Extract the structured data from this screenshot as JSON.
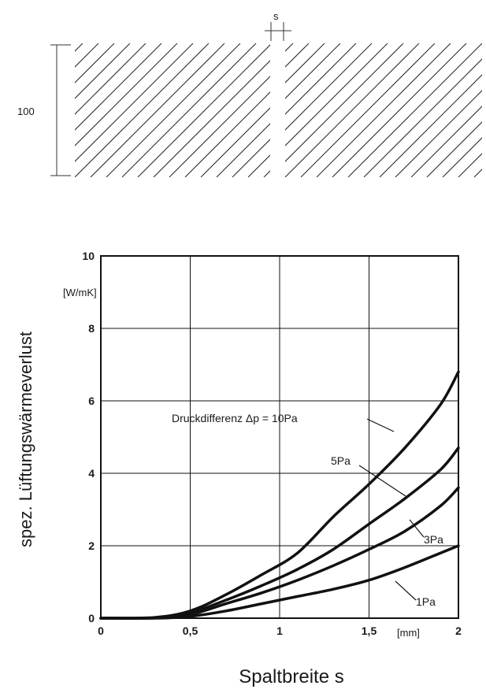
{
  "detail": {
    "dimension_label": "100",
    "gap_label": "s"
  },
  "chart_data": {
    "type": "line",
    "title": "",
    "xlabel": "Spaltbreite s",
    "ylabel": "spez. Lüftungswärmeverlust",
    "x_unit": "[mm]",
    "y_unit": "[W/mK]",
    "xlim": [
      0,
      2
    ],
    "ylim": [
      0,
      10
    ],
    "x_ticks": [
      0,
      0.5,
      1,
      1.5,
      2
    ],
    "x_tick_labels": [
      "0",
      "0,5",
      "1",
      "1,5",
      "2"
    ],
    "y_ticks": [
      0,
      2,
      4,
      6,
      8,
      10
    ],
    "y_tick_labels": [
      "0",
      "2",
      "4",
      "6",
      "8",
      "10"
    ],
    "grid": true,
    "series": [
      {
        "name": "Druckdifferenz Δp = 10Pa",
        "x": [
          0,
          0.3,
          0.5,
          0.7,
          0.9,
          1.1,
          1.3,
          1.5,
          1.7,
          1.9,
          2.0
        ],
        "y": [
          0,
          0.02,
          0.2,
          0.65,
          1.2,
          1.8,
          2.8,
          3.7,
          4.7,
          5.9,
          6.8
        ]
      },
      {
        "name": "5Pa",
        "x": [
          0,
          0.3,
          0.5,
          0.7,
          0.9,
          1.1,
          1.3,
          1.5,
          1.7,
          1.9,
          2.0
        ],
        "y": [
          0,
          0.01,
          0.15,
          0.5,
          0.9,
          1.35,
          1.9,
          2.6,
          3.3,
          4.1,
          4.7
        ]
      },
      {
        "name": "3Pa",
        "x": [
          0,
          0.3,
          0.5,
          0.7,
          0.9,
          1.1,
          1.3,
          1.5,
          1.7,
          1.9,
          2.0
        ],
        "y": [
          0,
          0.01,
          0.1,
          0.4,
          0.7,
          1.05,
          1.45,
          1.9,
          2.4,
          3.1,
          3.6
        ]
      },
      {
        "name": "1Pa",
        "x": [
          0,
          0.3,
          0.5,
          0.7,
          0.9,
          1.1,
          1.3,
          1.5,
          1.7,
          1.9,
          2.0
        ],
        "y": [
          0,
          0.0,
          0.05,
          0.2,
          0.4,
          0.6,
          0.8,
          1.05,
          1.4,
          1.8,
          2.0
        ]
      }
    ]
  }
}
